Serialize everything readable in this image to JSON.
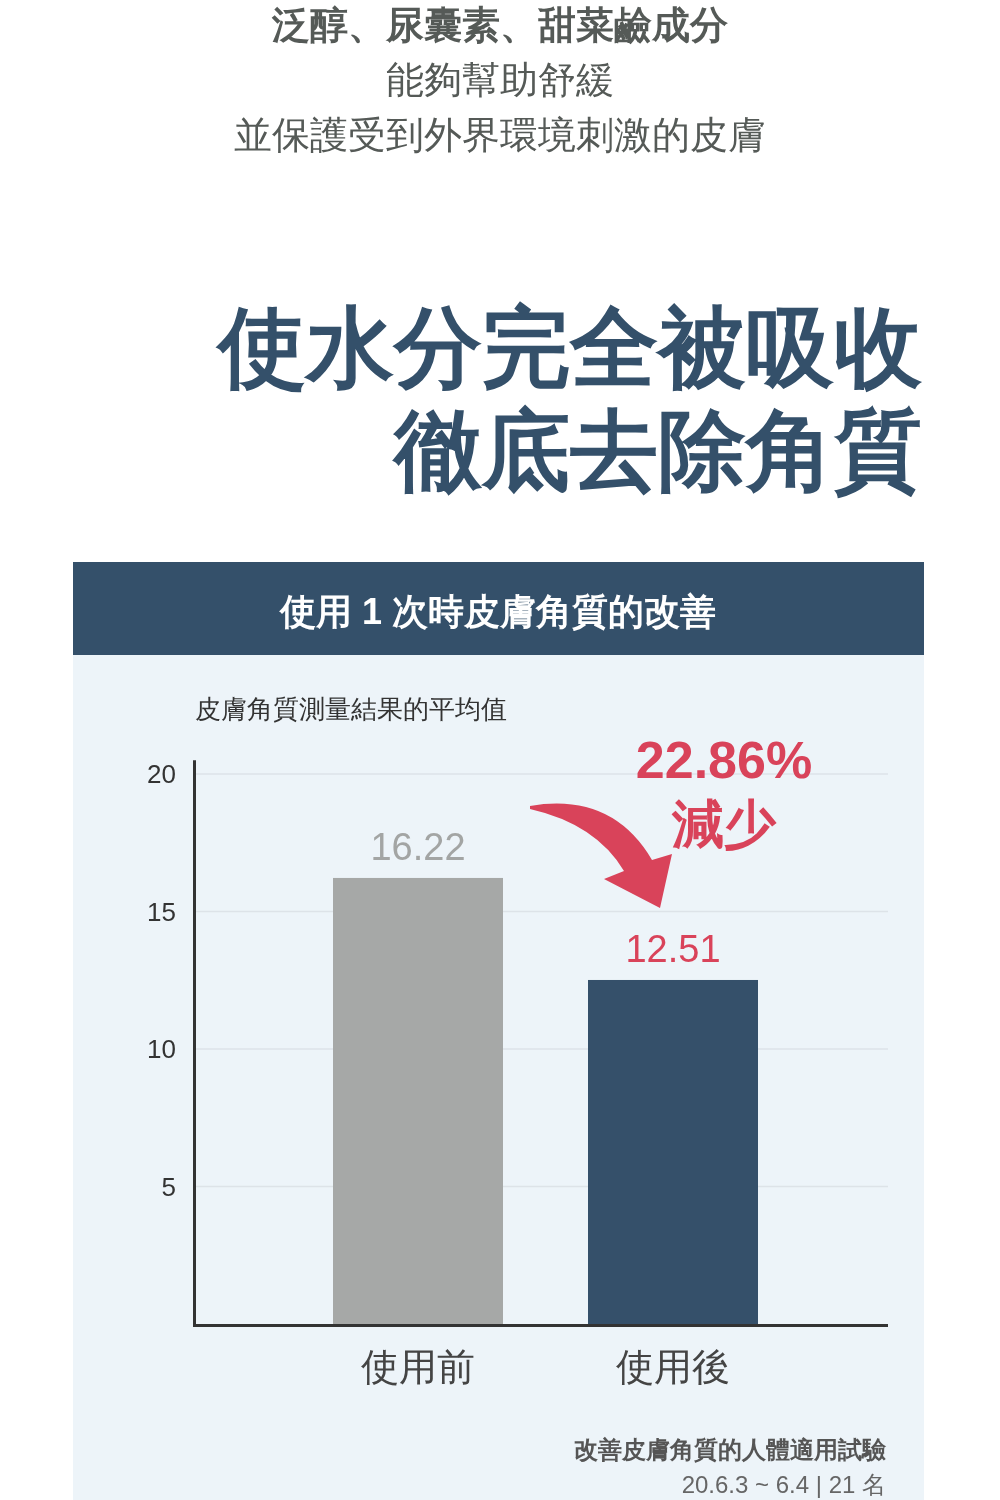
{
  "chart_data": {
    "type": "bar",
    "title": "使用 1 次時皮膚角質的改善",
    "ylabel": "皮膚角質測量結果的平均值",
    "categories": [
      "使用前",
      "使用後"
    ],
    "values": [
      16.22,
      12.51
    ],
    "colors": [
      "#a6a8a7",
      "#35506a"
    ],
    "ylim": [
      0,
      20.5
    ],
    "yticks": [
      5,
      10,
      15,
      20
    ],
    "grid": "y",
    "data_labels": true,
    "annotations": [
      "泛醇、尿囊素、甜菜鹼成分",
      "能夠幫助舒緩",
      "並保護受到外界環境刺激的皮膚",
      "使水分完全被吸收",
      "徹底去除角質",
      "22.86%\n減少",
      "改善皮膚角質的人體適用試驗",
      "20.6.3 ~ 6.4 | 21 名"
    ]
  }
}
